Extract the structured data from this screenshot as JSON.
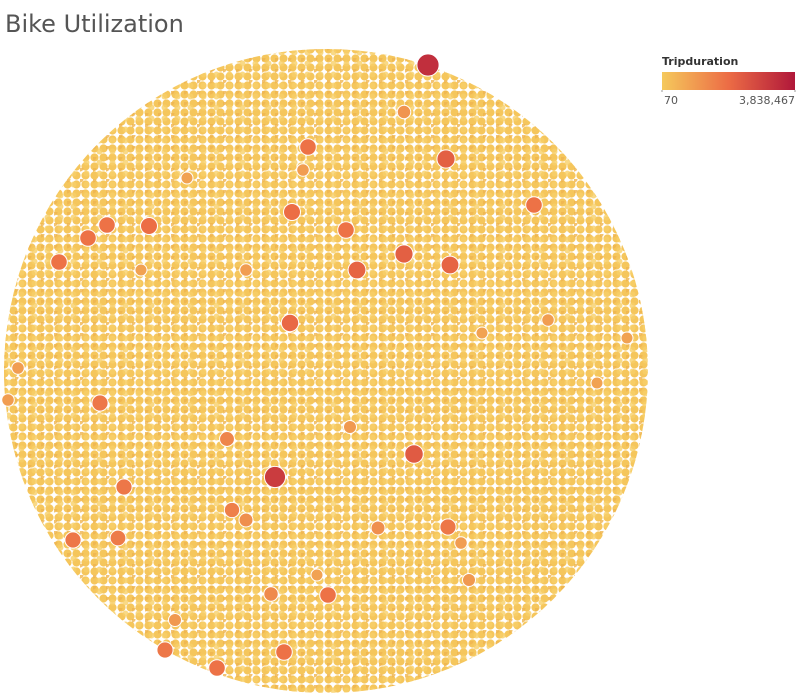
{
  "chart_data": {
    "type": "bubble",
    "title": "Bike Utilization",
    "color_legend": {
      "title": "Tripduration",
      "range": [
        70,
        {
          "value": 3838467,
          "label": "3,838,467"
        }
      ]
    },
    "colors": [
      "#f5c95c",
      "#ec6c45",
      "#b0173a"
    ],
    "values": [
      3300000,
      3000000,
      2300000,
      2200000,
      2200000,
      2100000,
      2100000,
      2000000,
      1900000,
      1900000,
      1800000,
      1800000,
      1800000,
      1800000,
      1800000,
      1800000,
      1700000,
      1700000,
      1700000,
      1600000,
      1700000,
      1800000,
      1800000,
      1700000,
      1800000,
      1500000,
      1400000,
      1300000,
      1200000,
      1200000,
      1000000,
      1000000,
      1100000,
      900000,
      900000,
      800000,
      900000,
      800000,
      1000000,
      800000,
      900000,
      800000,
      800000,
      800000,
      900000,
      900000
    ]
  }
}
